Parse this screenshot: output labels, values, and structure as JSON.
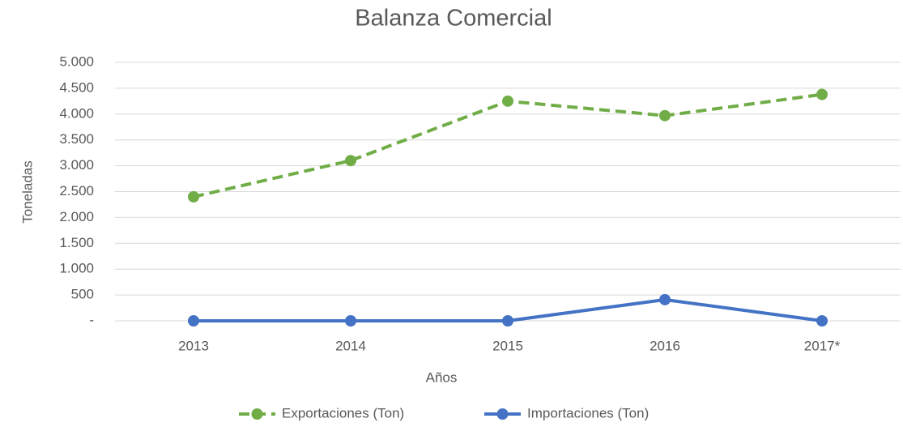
{
  "chart_data": {
    "type": "line",
    "title": "Balanza Comercial",
    "x_label": "Años",
    "y_label": "Toneladas",
    "categories": [
      "2013",
      "2014",
      "2015",
      "2016",
      "2017*"
    ],
    "series": [
      {
        "name": "Exportaciones (Ton)",
        "color": "#70ad47",
        "line_style": "dashed",
        "values": [
          2400,
          3100,
          4250,
          3970,
          4380
        ]
      },
      {
        "name": "Importaciones (Ton)",
        "color": "#4472c4",
        "line_style": "solid",
        "values": [
          0,
          0,
          0,
          410,
          0
        ]
      }
    ],
    "ylim": [
      0,
      5000
    ],
    "yticks": [
      {
        "value": 0,
        "label": "-"
      },
      500,
      {
        "value": 1000,
        "label": "1.000"
      },
      {
        "value": 1500,
        "label": "1.500"
      },
      {
        "value": 2000,
        "label": "2.000"
      },
      {
        "value": 2500,
        "label": "2.500"
      },
      {
        "value": 3000,
        "label": "3.000"
      },
      {
        "value": 3500,
        "label": "3.500"
      },
      {
        "value": 4000,
        "label": "4.000"
      },
      {
        "value": 4500,
        "label": "4.500"
      },
      {
        "value": 5000,
        "label": "5.000"
      }
    ],
    "grid": true,
    "legend": "bottom"
  }
}
